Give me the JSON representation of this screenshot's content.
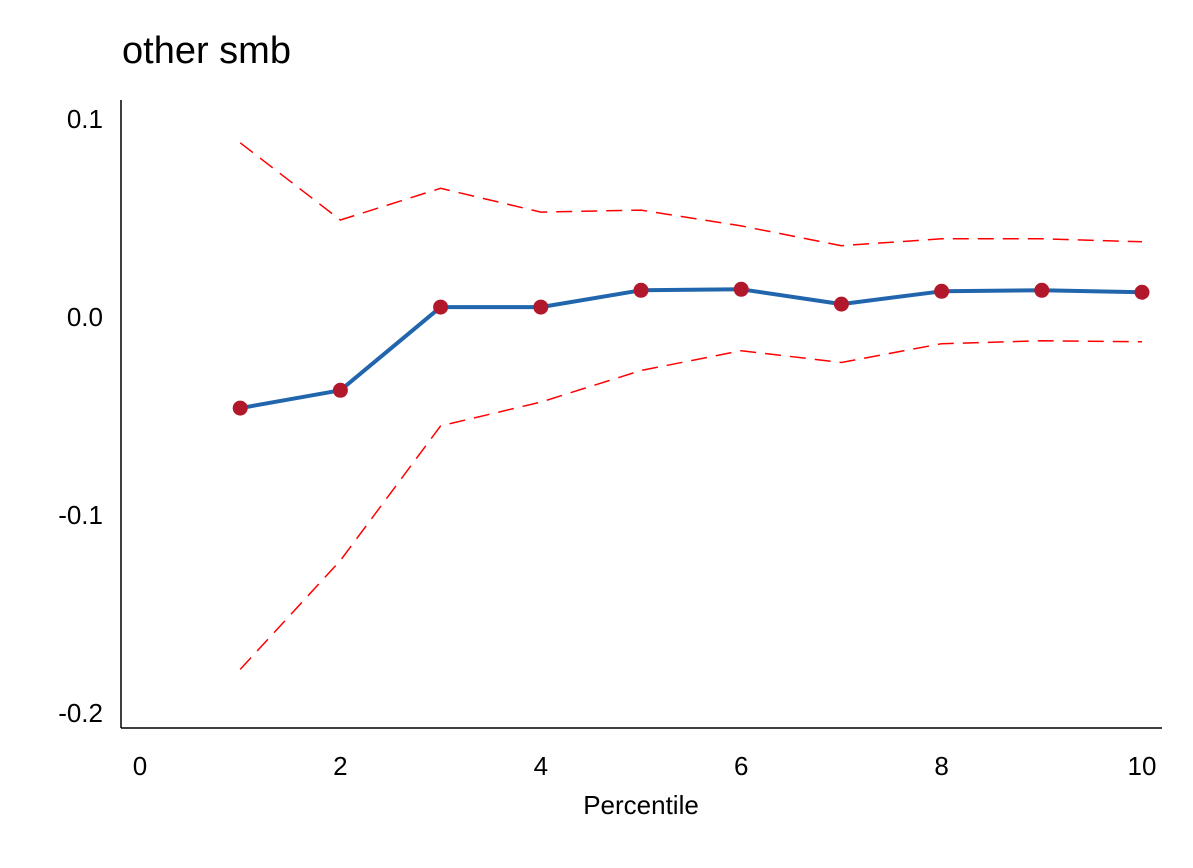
{
  "chart_data": {
    "type": "line",
    "title": "other smb",
    "xlabel": "Percentile",
    "ylabel": "",
    "xlim": [
      0,
      10
    ],
    "ylim": [
      -0.2,
      0.1
    ],
    "x_ticks": [
      0,
      2,
      4,
      6,
      8,
      10
    ],
    "x_tick_labels": [
      "0",
      "2",
      "4",
      "6",
      "8",
      "10"
    ],
    "y_ticks": [
      0.1,
      0.0,
      -0.1,
      -0.2
    ],
    "y_tick_labels": [
      "0.1",
      "0.0",
      "-0.1",
      "-0.2"
    ],
    "grid": false,
    "x": [
      1,
      2,
      3,
      4,
      5,
      6,
      7,
      8,
      9,
      10
    ],
    "series": [
      {
        "role": "estimate",
        "color": "#2166ac",
        "marker_color": "#b2182b",
        "values": [
          -0.046,
          -0.037,
          0.005,
          0.005,
          0.0135,
          0.014,
          0.0065,
          0.013,
          0.0135,
          0.0125
        ]
      },
      {
        "role": "upper-bound",
        "color": "#ff0000",
        "dashed": true,
        "values": [
          0.088,
          0.049,
          0.065,
          0.053,
          0.054,
          0.046,
          0.036,
          0.0395,
          0.0395,
          0.038
        ]
      },
      {
        "role": "lower-bound",
        "color": "#ff0000",
        "dashed": true,
        "values": [
          -0.178,
          -0.123,
          -0.055,
          -0.043,
          -0.027,
          -0.017,
          -0.023,
          -0.0135,
          -0.012,
          -0.0125
        ]
      }
    ]
  }
}
